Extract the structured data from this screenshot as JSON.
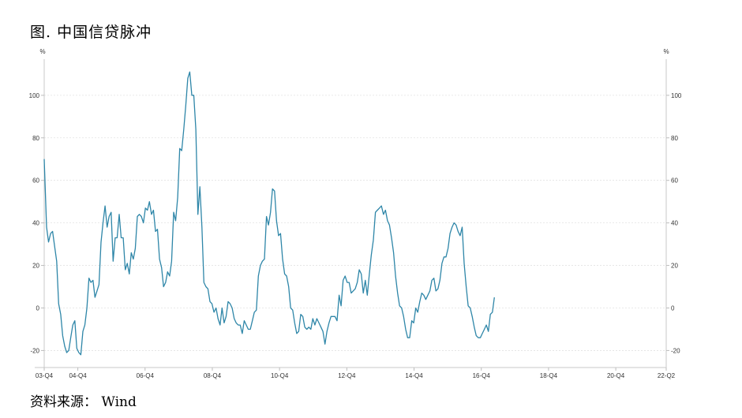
{
  "page": {
    "title": "图. 中国信贷脉冲",
    "source": "资料来源： Wind"
  },
  "chart_data": {
    "type": "line",
    "title": "图. 中国信贷脉冲",
    "left_unit": "%",
    "right_unit": "%",
    "ylim": [
      -28,
      117
    ],
    "yticks": [
      -20,
      0,
      20,
      40,
      60,
      80,
      100
    ],
    "xlim": [
      2003.75,
      2022.25
    ],
    "xticks": [
      {
        "label": "03-Q4",
        "x": 2003.75
      },
      {
        "label": "04-Q4",
        "x": 2004.75
      },
      {
        "label": "06-Q4",
        "x": 2006.75
      },
      {
        "label": "08-Q4",
        "x": 2008.75
      },
      {
        "label": "10-Q4",
        "x": 2010.75
      },
      {
        "label": "12-Q4",
        "x": 2012.75
      },
      {
        "label": "14-Q4",
        "x": 2014.75
      },
      {
        "label": "16-Q4",
        "x": 2016.75
      },
      {
        "label": "18-Q4",
        "x": 2018.75
      },
      {
        "label": "20-Q4",
        "x": 2020.75
      },
      {
        "label": "22-Q2",
        "x": 2022.25
      }
    ],
    "grid": true,
    "series": [
      {
        "color": "#2e86a8",
        "points": [
          [
            2003.75,
            70
          ],
          [
            2003.82,
            38
          ],
          [
            2003.88,
            31
          ],
          [
            2003.94,
            35
          ],
          [
            2004.0,
            36
          ],
          [
            2004.06,
            29
          ],
          [
            2004.12,
            22
          ],
          [
            2004.18,
            2
          ],
          [
            2004.24,
            -3
          ],
          [
            2004.3,
            -13
          ],
          [
            2004.36,
            -18
          ],
          [
            2004.42,
            -21
          ],
          [
            2004.48,
            -20
          ],
          [
            2004.54,
            -14
          ],
          [
            2004.6,
            -8
          ],
          [
            2004.66,
            -6
          ],
          [
            2004.72,
            -19
          ],
          [
            2004.78,
            -21
          ],
          [
            2004.84,
            -22
          ],
          [
            2004.9,
            -11
          ],
          [
            2004.96,
            -8
          ],
          [
            2005.02,
            0
          ],
          [
            2005.08,
            14
          ],
          [
            2005.14,
            12
          ],
          [
            2005.2,
            13
          ],
          [
            2005.26,
            5
          ],
          [
            2005.32,
            8
          ],
          [
            2005.38,
            11
          ],
          [
            2005.44,
            31
          ],
          [
            2005.5,
            40
          ],
          [
            2005.56,
            48
          ],
          [
            2005.62,
            38
          ],
          [
            2005.68,
            43
          ],
          [
            2005.74,
            45
          ],
          [
            2005.8,
            22
          ],
          [
            2005.86,
            33
          ],
          [
            2005.92,
            33
          ],
          [
            2005.98,
            44
          ],
          [
            2006.04,
            33
          ],
          [
            2006.1,
            33
          ],
          [
            2006.16,
            18
          ],
          [
            2006.22,
            21
          ],
          [
            2006.28,
            16
          ],
          [
            2006.34,
            26
          ],
          [
            2006.4,
            23
          ],
          [
            2006.46,
            28
          ],
          [
            2006.52,
            43
          ],
          [
            2006.58,
            44
          ],
          [
            2006.64,
            43
          ],
          [
            2006.7,
            40
          ],
          [
            2006.76,
            47
          ],
          [
            2006.82,
            46
          ],
          [
            2006.88,
            50
          ],
          [
            2006.94,
            44
          ],
          [
            2007.0,
            46
          ],
          [
            2007.06,
            36
          ],
          [
            2007.12,
            37
          ],
          [
            2007.18,
            23
          ],
          [
            2007.24,
            19
          ],
          [
            2007.3,
            10
          ],
          [
            2007.36,
            12
          ],
          [
            2007.42,
            17
          ],
          [
            2007.48,
            15
          ],
          [
            2007.54,
            22
          ],
          [
            2007.6,
            45
          ],
          [
            2007.66,
            41
          ],
          [
            2007.72,
            52
          ],
          [
            2007.78,
            75
          ],
          [
            2007.84,
            74
          ],
          [
            2007.9,
            84
          ],
          [
            2007.96,
            95
          ],
          [
            2008.02,
            108
          ],
          [
            2008.08,
            111
          ],
          [
            2008.14,
            100
          ],
          [
            2008.2,
            100
          ],
          [
            2008.26,
            84
          ],
          [
            2008.32,
            44
          ],
          [
            2008.38,
            57
          ],
          [
            2008.44,
            38
          ],
          [
            2008.5,
            12
          ],
          [
            2008.56,
            10
          ],
          [
            2008.62,
            9
          ],
          [
            2008.68,
            3
          ],
          [
            2008.74,
            2
          ],
          [
            2008.8,
            -2
          ],
          [
            2008.86,
            0
          ],
          [
            2008.92,
            -5
          ],
          [
            2008.98,
            -8
          ],
          [
            2009.04,
            0
          ],
          [
            2009.1,
            -7
          ],
          [
            2009.16,
            -4
          ],
          [
            2009.22,
            3
          ],
          [
            2009.28,
            2
          ],
          [
            2009.34,
            0
          ],
          [
            2009.4,
            -5
          ],
          [
            2009.46,
            -7
          ],
          [
            2009.52,
            -8
          ],
          [
            2009.58,
            -8
          ],
          [
            2009.64,
            -12
          ],
          [
            2009.7,
            -6
          ],
          [
            2009.76,
            -8
          ],
          [
            2009.82,
            -10
          ],
          [
            2009.88,
            -10
          ],
          [
            2009.94,
            -6
          ],
          [
            2010.0,
            -2
          ],
          [
            2010.06,
            -1
          ],
          [
            2010.12,
            15
          ],
          [
            2010.18,
            20
          ],
          [
            2010.24,
            22
          ],
          [
            2010.3,
            23
          ],
          [
            2010.36,
            43
          ],
          [
            2010.42,
            39
          ],
          [
            2010.48,
            45
          ],
          [
            2010.54,
            56
          ],
          [
            2010.6,
            55
          ],
          [
            2010.66,
            41
          ],
          [
            2010.72,
            34
          ],
          [
            2010.78,
            35
          ],
          [
            2010.84,
            23
          ],
          [
            2010.9,
            16
          ],
          [
            2010.96,
            15
          ],
          [
            2011.02,
            10
          ],
          [
            2011.08,
            0
          ],
          [
            2011.14,
            -1
          ],
          [
            2011.2,
            -7
          ],
          [
            2011.26,
            -12
          ],
          [
            2011.32,
            -11
          ],
          [
            2011.38,
            -3
          ],
          [
            2011.44,
            -4
          ],
          [
            2011.5,
            -9
          ],
          [
            2011.56,
            -10
          ],
          [
            2011.62,
            -9
          ],
          [
            2011.68,
            -10
          ],
          [
            2011.74,
            -5
          ],
          [
            2011.8,
            -8
          ],
          [
            2011.86,
            -5
          ],
          [
            2011.92,
            -7
          ],
          [
            2011.98,
            -9
          ],
          [
            2012.04,
            -11
          ],
          [
            2012.1,
            -17
          ],
          [
            2012.16,
            -11
          ],
          [
            2012.22,
            -7
          ],
          [
            2012.28,
            -4
          ],
          [
            2012.34,
            -4
          ],
          [
            2012.4,
            -4
          ],
          [
            2012.46,
            -6
          ],
          [
            2012.52,
            6
          ],
          [
            2012.58,
            1
          ],
          [
            2012.64,
            13
          ],
          [
            2012.7,
            15
          ],
          [
            2012.76,
            12
          ],
          [
            2012.82,
            12
          ],
          [
            2012.88,
            7
          ],
          [
            2012.94,
            8
          ],
          [
            2013.0,
            9
          ],
          [
            2013.06,
            12
          ],
          [
            2013.12,
            18
          ],
          [
            2013.18,
            16
          ],
          [
            2013.24,
            7
          ],
          [
            2013.3,
            13
          ],
          [
            2013.36,
            6
          ],
          [
            2013.42,
            16
          ],
          [
            2013.48,
            25
          ],
          [
            2013.54,
            32
          ],
          [
            2013.6,
            45
          ],
          [
            2013.66,
            46
          ],
          [
            2013.72,
            47
          ],
          [
            2013.78,
            48
          ],
          [
            2013.84,
            44
          ],
          [
            2013.9,
            46
          ],
          [
            2013.96,
            41
          ],
          [
            2014.02,
            39
          ],
          [
            2014.08,
            33
          ],
          [
            2014.14,
            26
          ],
          [
            2014.2,
            15
          ],
          [
            2014.26,
            7
          ],
          [
            2014.32,
            1
          ],
          [
            2014.38,
            0
          ],
          [
            2014.44,
            -4
          ],
          [
            2014.5,
            -10
          ],
          [
            2014.56,
            -14
          ],
          [
            2014.62,
            -14
          ],
          [
            2014.68,
            -6
          ],
          [
            2014.74,
            -7
          ],
          [
            2014.8,
            0
          ],
          [
            2014.86,
            -2
          ],
          [
            2014.92,
            3
          ],
          [
            2014.98,
            7
          ],
          [
            2015.04,
            6
          ],
          [
            2015.1,
            4
          ],
          [
            2015.16,
            6
          ],
          [
            2015.22,
            8
          ],
          [
            2015.28,
            13
          ],
          [
            2015.34,
            14
          ],
          [
            2015.4,
            8
          ],
          [
            2015.46,
            9
          ],
          [
            2015.52,
            13
          ],
          [
            2015.58,
            21
          ],
          [
            2015.64,
            24
          ],
          [
            2015.7,
            24
          ],
          [
            2015.76,
            28
          ],
          [
            2015.82,
            35
          ],
          [
            2015.88,
            38
          ],
          [
            2015.94,
            40
          ],
          [
            2016.0,
            39
          ],
          [
            2016.06,
            36
          ],
          [
            2016.12,
            34
          ],
          [
            2016.18,
            38
          ],
          [
            2016.24,
            21
          ],
          [
            2016.3,
            10
          ],
          [
            2016.36,
            1
          ],
          [
            2016.42,
            0
          ],
          [
            2016.48,
            -4
          ],
          [
            2016.54,
            -9
          ],
          [
            2016.6,
            -13
          ],
          [
            2016.66,
            -14
          ],
          [
            2016.72,
            -14
          ],
          [
            2016.78,
            -12
          ],
          [
            2016.84,
            -10
          ],
          [
            2016.9,
            -8
          ],
          [
            2016.96,
            -11
          ],
          [
            2017.02,
            -3
          ],
          [
            2017.08,
            -2
          ],
          [
            2017.14,
            5
          ]
        ]
      }
    ]
  }
}
